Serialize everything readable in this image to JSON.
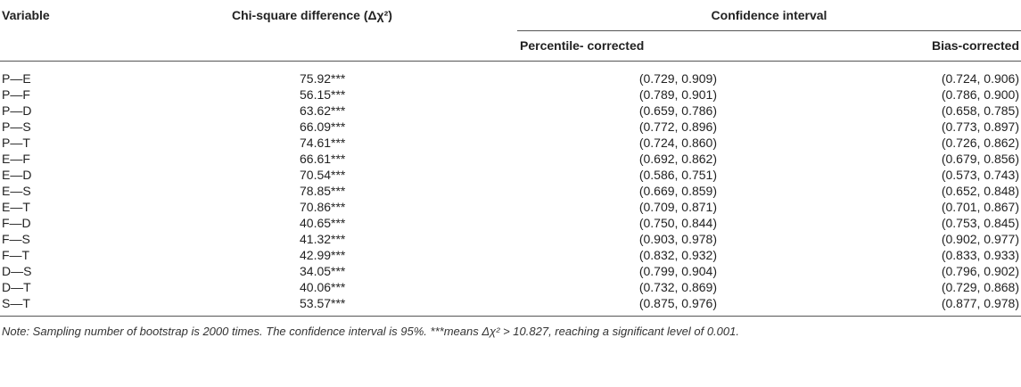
{
  "table": {
    "headers": {
      "variable": "Variable",
      "chi_square": "Chi-square difference (Δχ²)",
      "confidence_interval": "Confidence interval",
      "percentile": "Percentile- corrected",
      "bias": "Bias-corrected"
    },
    "rows": [
      [
        "P—E",
        "75.92***",
        "(0.729, 0.909)",
        "(0.724, 0.906)"
      ],
      [
        "P—F",
        "56.15***",
        "(0.789, 0.901)",
        "(0.786, 0.900)"
      ],
      [
        "P—D",
        "63.62***",
        "(0.659, 0.786)",
        "(0.658, 0.785)"
      ],
      [
        "P—S",
        "66.09***",
        "(0.772, 0.896)",
        "(0.773, 0.897)"
      ],
      [
        "P—T",
        "74.61***",
        "(0.724, 0.860)",
        "(0.726, 0.862)"
      ],
      [
        "E—F",
        "66.61***",
        "(0.692, 0.862)",
        "(0.679, 0.856)"
      ],
      [
        "E—D",
        "70.54***",
        "(0.586, 0.751)",
        "(0.573, 0.743)"
      ],
      [
        "E—S",
        "78.85***",
        "(0.669, 0.859)",
        "(0.652, 0.848)"
      ],
      [
        "E—T",
        "70.86***",
        "(0.709, 0.871)",
        "(0.701, 0.867)"
      ],
      [
        "F—D",
        "40.65***",
        "(0.750, 0.844)",
        "(0.753, 0.845)"
      ],
      [
        "F—S",
        "41.32***",
        "(0.903, 0.978)",
        "(0.902, 0.977)"
      ],
      [
        "F—T",
        "42.99***",
        "(0.832, 0.932)",
        "(0.833, 0.933)"
      ],
      [
        "D—S",
        "34.05***",
        "(0.799, 0.904)",
        "(0.796, 0.902)"
      ],
      [
        "D—T",
        "40.06***",
        "(0.732, 0.869)",
        "(0.729, 0.868)"
      ],
      [
        "S—T",
        "53.57***",
        "(0.875, 0.976)",
        "(0.877, 0.978)"
      ]
    ]
  },
  "note": "Note: Sampling number of bootstrap is 2000 times. The confidence interval is 95%. ***means Δχ² > 10.827, reaching a significant level of 0.001."
}
